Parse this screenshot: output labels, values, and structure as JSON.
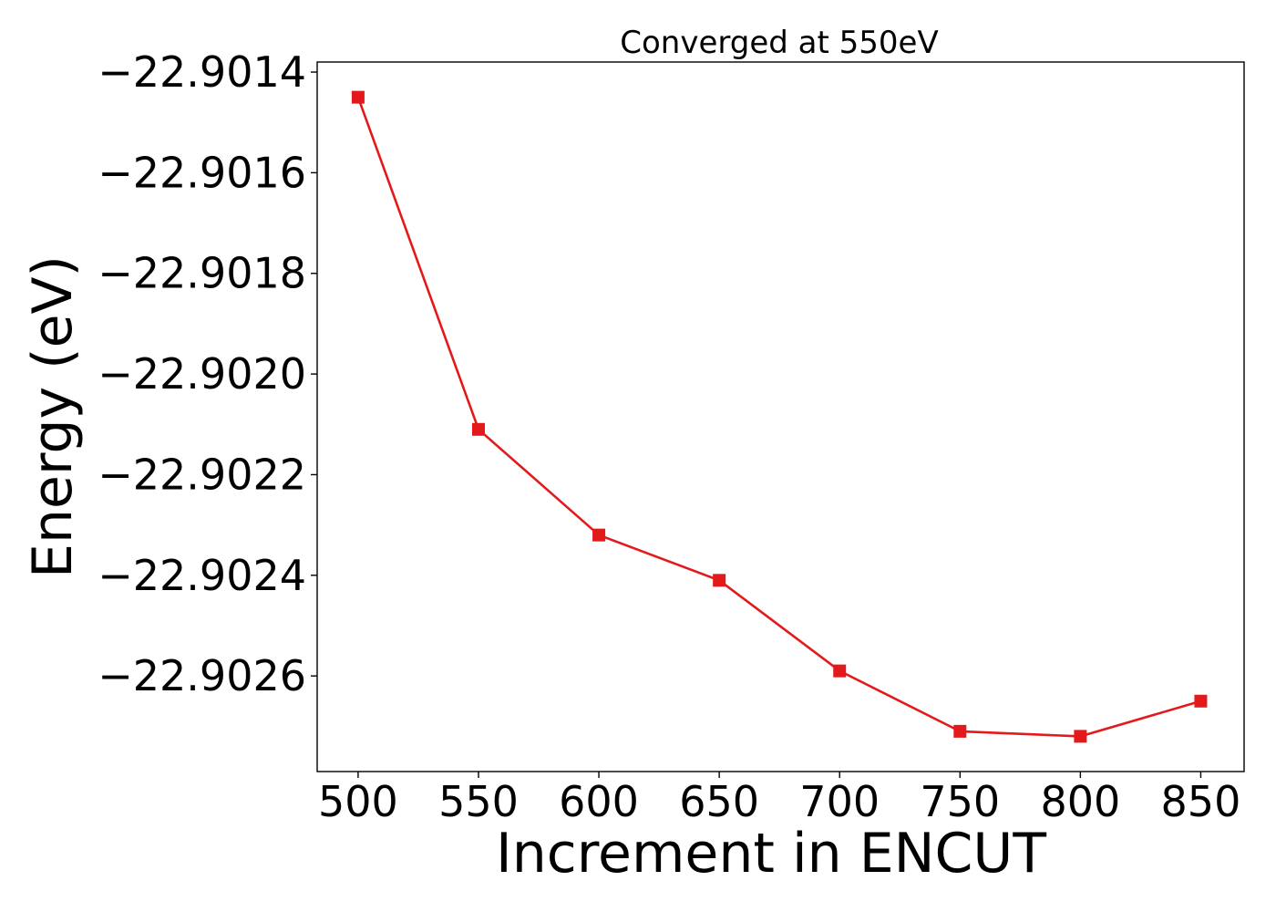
{
  "chart_data": {
    "type": "line",
    "title": "Converged at 550eV",
    "xlabel": "Increment in ENCUT",
    "ylabel": "Energy (eV)",
    "x": [
      500,
      550,
      600,
      650,
      700,
      750,
      800,
      850
    ],
    "series": [
      {
        "values": [
          -22.90145,
          -22.90211,
          -22.90232,
          -22.90241,
          -22.90259,
          -22.90271,
          -22.90272,
          -22.90265
        ]
      }
    ],
    "xlim": [
      483,
      868
    ],
    "ylim": [
      -22.90279,
      -22.90138
    ],
    "xticks": [
      500,
      550,
      600,
      650,
      700,
      750,
      800,
      850
    ],
    "xtick_labels": [
      "500",
      "550",
      "600",
      "650",
      "700",
      "750",
      "800",
      "850"
    ],
    "yticks": [
      -22.9014,
      -22.9016,
      -22.9018,
      -22.902,
      -22.9022,
      -22.9024,
      -22.9026
    ],
    "ytick_labels": [
      "−22.9014",
      "−22.9016",
      "−22.9018",
      "−22.9020",
      "−22.9022",
      "−22.9024",
      "−22.9026"
    ],
    "grid": false,
    "legend": "none",
    "line_color": "#e31a1c",
    "marker": "square"
  }
}
